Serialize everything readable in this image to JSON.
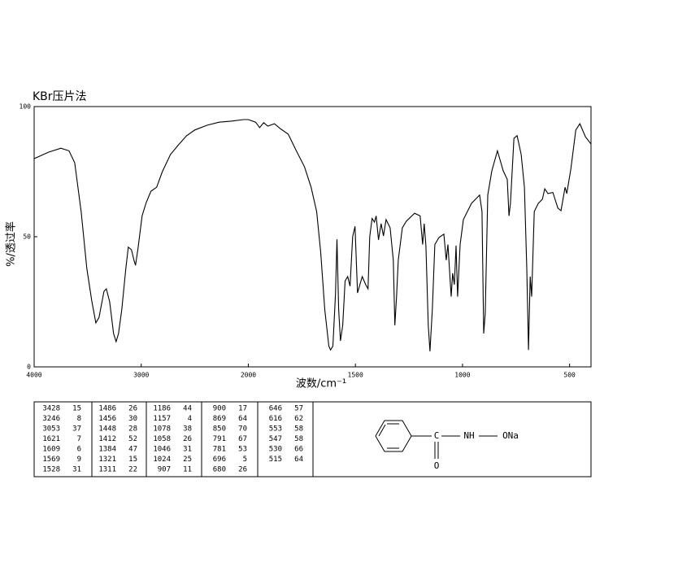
{
  "chart_data": {
    "type": "line",
    "title": "KBr压片法",
    "xlabel": "波数/cm⁻¹",
    "ylabel": "%/透过率",
    "color": "#000000",
    "x_scale_break": 2000,
    "xlim": [
      4000,
      400
    ],
    "ylim": [
      0,
      100
    ],
    "xticks": [
      4000,
      3000,
      2000,
      1500,
      1000,
      500
    ],
    "yticks": [
      0,
      50,
      100
    ],
    "x": [
      4000,
      3864,
      3750,
      3674,
      3621,
      3561,
      3508,
      3462,
      3424,
      3394,
      3348,
      3326,
      3295,
      3258,
      3235,
      3212,
      3182,
      3144,
      3121,
      3091,
      3068,
      3053,
      3030,
      2992,
      2955,
      2909,
      2856,
      2803,
      2727,
      2652,
      2576,
      2500,
      2386,
      2273,
      2159,
      2045,
      2000,
      1966,
      1947,
      1928,
      1909,
      1878,
      1852,
      1814,
      1776,
      1738,
      1707,
      1681,
      1662,
      1643,
      1624,
      1616,
      1605,
      1593,
      1586,
      1578,
      1570,
      1559,
      1548,
      1536,
      1525,
      1513,
      1502,
      1490,
      1479,
      1468,
      1452,
      1441,
      1433,
      1422,
      1411,
      1403,
      1392,
      1380,
      1369,
      1357,
      1338,
      1323,
      1316,
      1308,
      1300,
      1281,
      1262,
      1224,
      1198,
      1186,
      1179,
      1171,
      1160,
      1152,
      1141,
      1129,
      1110,
      1087,
      1076,
      1068,
      1053,
      1046,
      1038,
      1030,
      1023,
      1011,
      996,
      958,
      920,
      909,
      901,
      894,
      882,
      863,
      837,
      810,
      791,
      783,
      776,
      760,
      745,
      726,
      711,
      700,
      692,
      684,
      677,
      665,
      646,
      627,
      616,
      601,
      578,
      555,
      540,
      521,
      513,
      494,
      471,
      452,
      426,
      400
    ],
    "values": [
      80,
      82.5,
      84,
      83,
      78.4,
      59.7,
      37.8,
      25.3,
      16.9,
      19,
      29,
      30,
      25,
      12.8,
      9.7,
      12.8,
      22,
      37.8,
      46,
      45,
      41,
      39,
      45.6,
      58,
      63,
      67.5,
      69,
      75,
      81.6,
      85.3,
      88.8,
      91,
      92.8,
      94,
      94.4,
      95,
      95,
      94,
      91.9,
      93.8,
      92.5,
      93.4,
      91.6,
      89.4,
      83,
      76.9,
      69,
      59.7,
      44,
      22,
      8,
      6.5,
      8,
      28,
      49,
      22,
      10,
      16,
      33,
      34.7,
      31,
      50,
      54,
      28.4,
      31.6,
      34.7,
      31.6,
      30,
      50,
      57,
      55.6,
      58,
      48.8,
      55,
      50.3,
      56.6,
      53.4,
      41,
      16,
      27,
      41,
      53.4,
      56,
      59,
      58,
      47,
      55,
      46.6,
      16,
      6,
      22,
      47,
      49.7,
      51,
      41,
      47,
      27,
      36,
      31.6,
      46.6,
      27,
      47,
      56.6,
      62.8,
      66,
      59.7,
      12.8,
      20.6,
      66,
      75.3,
      83,
      75.3,
      72,
      58,
      62.8,
      87.8,
      88.8,
      81.6,
      69,
      37.8,
      6.5,
      34.7,
      27,
      59.7,
      62.8,
      64.4,
      68.4,
      66.6,
      67,
      61,
      60,
      69,
      66.6,
      76,
      91,
      93.4,
      88.4,
      85.6
    ]
  },
  "peak_table": [
    [
      [
        3428,
        15
      ],
      [
        3246,
        8
      ],
      [
        3053,
        37
      ],
      [
        1621,
        7
      ],
      [
        1609,
        6
      ],
      [
        1569,
        9
      ],
      [
        1528,
        31
      ]
    ],
    [
      [
        1486,
        26
      ],
      [
        1456,
        30
      ],
      [
        1448,
        28
      ],
      [
        1412,
        52
      ],
      [
        1384,
        47
      ],
      [
        1321,
        15
      ],
      [
        1311,
        22
      ]
    ],
    [
      [
        1186,
        44
      ],
      [
        1157,
        4
      ],
      [
        1078,
        38
      ],
      [
        1058,
        26
      ],
      [
        1046,
        31
      ],
      [
        1024,
        25
      ],
      [
        907,
        11
      ]
    ],
    [
      [
        900,
        17
      ],
      [
        869,
        64
      ],
      [
        850,
        70
      ],
      [
        791,
        67
      ],
      [
        781,
        53
      ],
      [
        696,
        5
      ],
      [
        680,
        26
      ]
    ],
    [
      [
        646,
        57
      ],
      [
        616,
        62
      ],
      [
        553,
        58
      ],
      [
        547,
        58
      ],
      [
        530,
        66
      ],
      [
        515,
        64
      ]
    ]
  ],
  "structure": {
    "labels": [
      "C",
      "NH",
      "ONa",
      "O"
    ]
  }
}
